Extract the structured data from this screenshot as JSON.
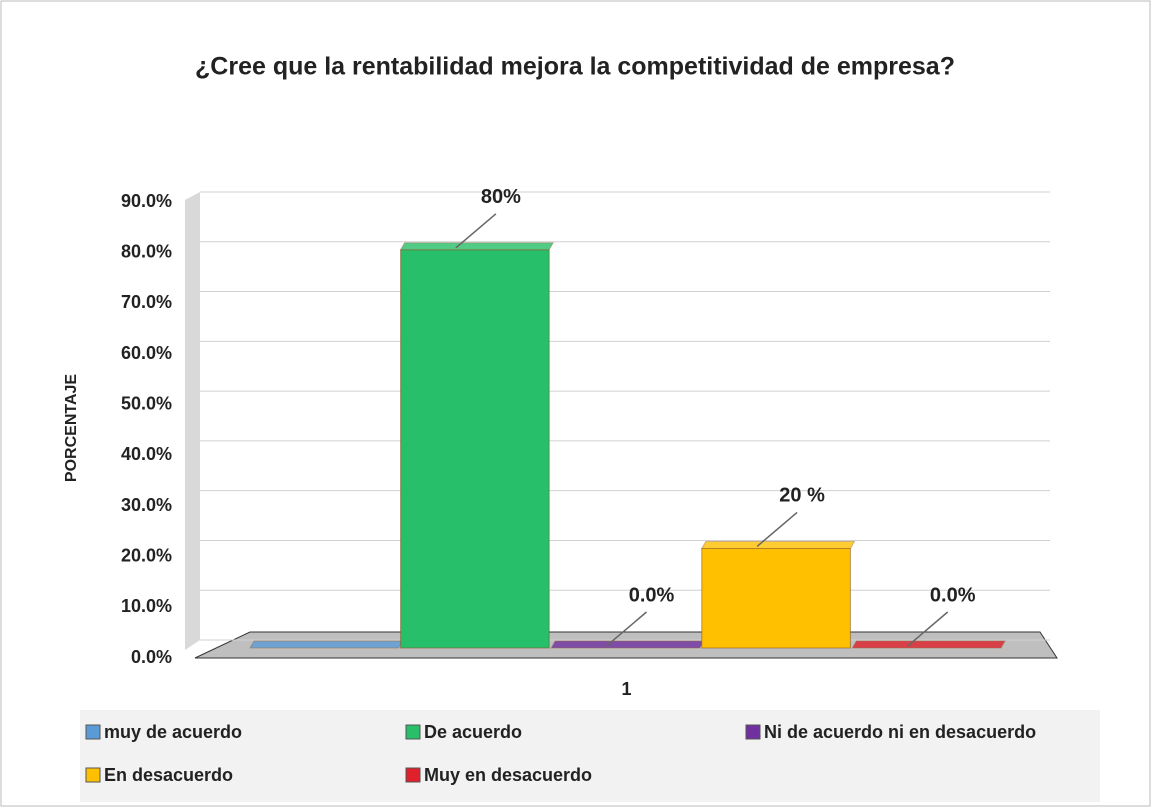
{
  "chart_data": {
    "type": "bar",
    "title": "¿Cree que la rentabilidad mejora la competitividad de empresa?",
    "ylabel": "PORCENTAJE",
    "categories": [
      "1"
    ],
    "series": [
      {
        "name": "muy de acuerdo",
        "color": "#5b9bd5",
        "values": [
          0
        ],
        "value_labels": [
          null
        ]
      },
      {
        "name": "De acuerdo",
        "color": "#27bf6a",
        "values": [
          80
        ],
        "value_labels": [
          "80%"
        ]
      },
      {
        "name": "Ni de acuerdo ni en desacuerdo",
        "color": "#7030a0",
        "values": [
          0
        ],
        "value_labels": [
          "0.0%"
        ]
      },
      {
        "name": "En desacuerdo",
        "color": "#ffc000",
        "values": [
          20
        ],
        "value_labels": [
          "20 %"
        ]
      },
      {
        "name": "Muy en desacuerdo",
        "color": "#e0202a",
        "values": [
          0
        ],
        "value_labels": [
          "0.0%"
        ]
      }
    ],
    "ylim": [
      0,
      90
    ],
    "yticks": [
      {
        "value": 0,
        "label": "0.0%"
      },
      {
        "value": 10,
        "label": "10.0%"
      },
      {
        "value": 20,
        "label": "20.0%"
      },
      {
        "value": 30,
        "label": "30.0%"
      },
      {
        "value": 40,
        "label": "40.0%"
      },
      {
        "value": 50,
        "label": "50.0%"
      },
      {
        "value": 60,
        "label": "60.0%"
      },
      {
        "value": 70,
        "label": "70.0%"
      },
      {
        "value": 80,
        "label": "80.0%"
      },
      {
        "value": 90,
        "label": "90.0%"
      }
    ],
    "grid": true,
    "legend": "bottom"
  }
}
